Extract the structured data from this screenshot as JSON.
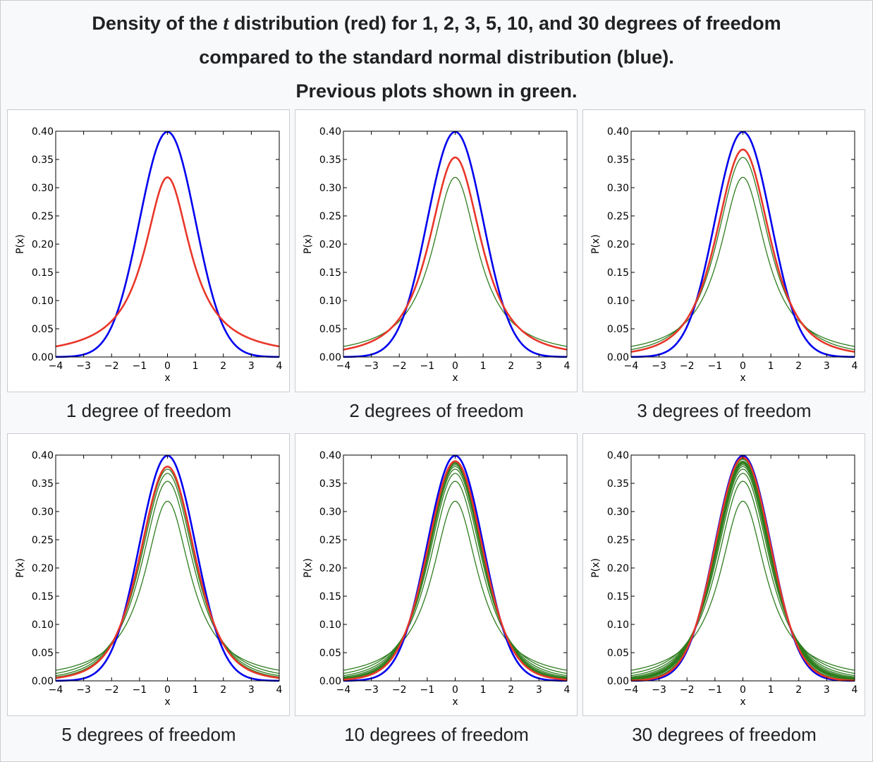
{
  "caption": {
    "line1_pre": "Density of the ",
    "line1_var": "t",
    "line1_post": " distribution (red) for 1, 2, 3, 5, 10, and 30 degrees of freedom",
    "line2": "compared to the standard normal distribution (blue).",
    "line3": "Previous plots shown in green."
  },
  "colors": {
    "normal": "#0000ee",
    "current": "#e8372a",
    "previous": "#2e7d1e"
  },
  "chart_data": [
    {
      "type": "line",
      "label": "1 degree of freedom",
      "df": 1,
      "previous_df": [],
      "xlabel": "x",
      "ylabel": "P(x)",
      "xlim": [
        -4,
        4
      ],
      "ylim": [
        0,
        0.4
      ],
      "xticks": [
        "−4",
        "−3",
        "−2",
        "−1",
        "0",
        "1",
        "2",
        "3",
        "4"
      ],
      "yticks": [
        "0.00",
        "0.05",
        "0.10",
        "0.15",
        "0.20",
        "0.25",
        "0.30",
        "0.35",
        "0.40"
      ]
    },
    {
      "type": "line",
      "label": "2 degrees of freedom",
      "df": 2,
      "previous_df": [
        1
      ],
      "xlabel": "x",
      "ylabel": "P(x)",
      "xlim": [
        -4,
        4
      ],
      "ylim": [
        0,
        0.4
      ],
      "xticks": [
        "−4",
        "−3",
        "−2",
        "−1",
        "0",
        "1",
        "2",
        "3",
        "4"
      ],
      "yticks": [
        "0.00",
        "0.05",
        "0.10",
        "0.15",
        "0.20",
        "0.25",
        "0.30",
        "0.35",
        "0.40"
      ]
    },
    {
      "type": "line",
      "label": "3 degrees of freedom",
      "df": 3,
      "previous_df": [
        1,
        2
      ],
      "xlabel": "x",
      "ylabel": "P(x)",
      "xlim": [
        -4,
        4
      ],
      "ylim": [
        0,
        0.4
      ],
      "xticks": [
        "−4",
        "−3",
        "−2",
        "−1",
        "0",
        "1",
        "2",
        "3",
        "4"
      ],
      "yticks": [
        "0.00",
        "0.05",
        "0.10",
        "0.15",
        "0.20",
        "0.25",
        "0.30",
        "0.35",
        "0.40"
      ]
    },
    {
      "type": "line",
      "label": "5 degrees of freedom",
      "df": 5,
      "previous_df": [
        1,
        2,
        3,
        4
      ],
      "xlabel": "x",
      "ylabel": "P(x)",
      "xlim": [
        -4,
        4
      ],
      "ylim": [
        0,
        0.4
      ],
      "xticks": [
        "−4",
        "−3",
        "−2",
        "−1",
        "0",
        "1",
        "2",
        "3",
        "4"
      ],
      "yticks": [
        "0.00",
        "0.05",
        "0.10",
        "0.15",
        "0.20",
        "0.25",
        "0.30",
        "0.35",
        "0.40"
      ]
    },
    {
      "type": "line",
      "label": "10 degrees of freedom",
      "df": 10,
      "previous_df": [
        1,
        2,
        3,
        4,
        5,
        6,
        7,
        8,
        9
      ],
      "xlabel": "x",
      "ylabel": "P(x)",
      "xlim": [
        -4,
        4
      ],
      "ylim": [
        0,
        0.4
      ],
      "xticks": [
        "−4",
        "−3",
        "−2",
        "−1",
        "0",
        "1",
        "2",
        "3",
        "4"
      ],
      "yticks": [
        "0.00",
        "0.05",
        "0.10",
        "0.15",
        "0.20",
        "0.25",
        "0.30",
        "0.35",
        "0.40"
      ]
    },
    {
      "type": "line",
      "label": "30 degrees of freedom",
      "df": 30,
      "previous_df": [
        1,
        2,
        3,
        4,
        5,
        6,
        7,
        8,
        9,
        10,
        15,
        20
      ],
      "xlabel": "x",
      "ylabel": "P(x)",
      "xlim": [
        -4,
        4
      ],
      "ylim": [
        0,
        0.4
      ],
      "xticks": [
        "−4",
        "−3",
        "−2",
        "−1",
        "0",
        "1",
        "2",
        "3",
        "4"
      ],
      "yticks": [
        "0.00",
        "0.05",
        "0.10",
        "0.15",
        "0.20",
        "0.25",
        "0.30",
        "0.35",
        "0.40"
      ]
    }
  ]
}
